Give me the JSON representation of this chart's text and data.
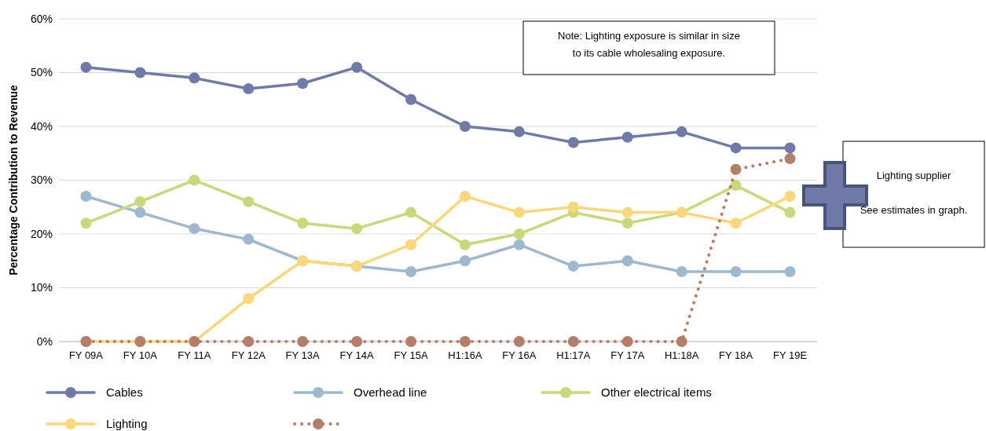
{
  "chart_data": {
    "type": "line",
    "ylabel": "Percentage Contribution to Revenue",
    "categories": [
      "FY 09A",
      "FY 10A",
      "FY 11A",
      "FY 12A",
      "FY 13A",
      "FY 14A",
      "FY 15A",
      "H1:16A",
      "FY 16A",
      "H1:17A",
      "FY 17A",
      "H1:18A",
      "FY 18A",
      "FY 19E"
    ],
    "series": [
      {
        "name": "Cables",
        "color": "#6f7aa8",
        "values": [
          51,
          50,
          49,
          47,
          48,
          51,
          45,
          40,
          39,
          37,
          38,
          39,
          36,
          36
        ]
      },
      {
        "name": "Overhead line",
        "color": "#9db8cf",
        "values": [
          27,
          24,
          21,
          19,
          15,
          14,
          13,
          15,
          18,
          14,
          15,
          13,
          13,
          13
        ]
      },
      {
        "name": "Other electrical items",
        "color": "#c9d97a",
        "values": [
          22,
          26,
          30,
          26,
          22,
          21,
          24,
          18,
          20,
          24,
          22,
          24,
          29,
          24
        ]
      },
      {
        "name": "Lighting",
        "color": "#f9d77a",
        "values": [
          0,
          0,
          0,
          8,
          15,
          14,
          18,
          27,
          24,
          25,
          24,
          24,
          22,
          27
        ]
      },
      {
        "color": "#b47e6a",
        "line_style": "dotted",
        "values": [
          0,
          0,
          0,
          0,
          0,
          0,
          0,
          0,
          0,
          0,
          0,
          0,
          32,
          34
        ]
      }
    ],
    "ylim": [
      0,
      60
    ],
    "yticks": [
      {
        "value": 0,
        "label": "0%"
      },
      {
        "value": 10,
        "label": "10%"
      },
      {
        "value": 20,
        "label": "20%"
      },
      {
        "value": 30,
        "label": "30%"
      },
      {
        "value": 40,
        "label": "40%"
      },
      {
        "value": 50,
        "label": "50%"
      },
      {
        "value": 60,
        "label": "60%"
      }
    ],
    "grid": "y",
    "legend": "bottom",
    "marker": "circle",
    "annotations": [
      "Note: Lighting exposure is similar in size to its cable wholesaling exposure.",
      "Lighting supplier",
      "See estimates in graph."
    ]
  }
}
